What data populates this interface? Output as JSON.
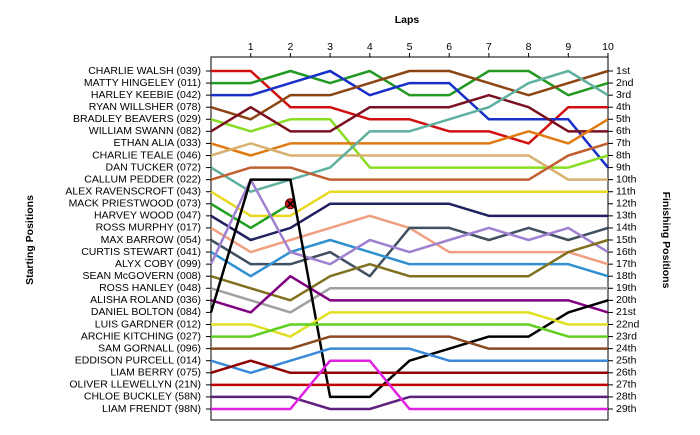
{
  "chart_data": {
    "type": "lap",
    "title": "Laps",
    "y_label": "Starting Positions",
    "y2_label": "Finishing Positions",
    "x": [
      0,
      1,
      2,
      3,
      4,
      5,
      6,
      7,
      8,
      9,
      10
    ],
    "xlim": [
      0,
      10
    ],
    "xticks": [
      1,
      2,
      3,
      4,
      5,
      6,
      7,
      8,
      9,
      10
    ],
    "ylim": [
      1,
      29
    ],
    "y_inverted": true,
    "yticks": [
      {
        "value": 1,
        "label": "CHARLIE WALSH (039)"
      },
      {
        "value": 2,
        "label": "MATTY HINGELEY (011)"
      },
      {
        "value": 3,
        "label": "HARLEY KEEBIE (042)"
      },
      {
        "value": 4,
        "label": "RYAN WILLSHER (078)"
      },
      {
        "value": 5,
        "label": "BRADLEY BEAVERS (029)"
      },
      {
        "value": 6,
        "label": "WILLIAM SWANN (082)"
      },
      {
        "value": 7,
        "label": "ETHAN ALIA (033)"
      },
      {
        "value": 8,
        "label": "CHARLIE TEALE (046)"
      },
      {
        "value": 9,
        "label": "DAN TUCKER (072)"
      },
      {
        "value": 10,
        "label": "CALLUM PEDDER (022)"
      },
      {
        "value": 11,
        "label": "ALEX RAVENSCROFT (043)"
      },
      {
        "value": 12,
        "label": "MACK PRIESTWOOD (073)"
      },
      {
        "value": 13,
        "label": "HARVEY WOOD (047)"
      },
      {
        "value": 14,
        "label": "ROSS MURPHY (017)"
      },
      {
        "value": 15,
        "label": "MAX BARROW (054)"
      },
      {
        "value": 16,
        "label": "CURTIS STEWART (041)"
      },
      {
        "value": 17,
        "label": "ALYX COBY (099)"
      },
      {
        "value": 18,
        "label": "SEAN McGOVERN (008)"
      },
      {
        "value": 19,
        "label": "ROSS HANLEY (048)"
      },
      {
        "value": 20,
        "label": "ALISHA ROLAND (036)"
      },
      {
        "value": 21,
        "label": "DANIEL BOLTON (084)"
      },
      {
        "value": 22,
        "label": "LUIS GARDNER (012)"
      },
      {
        "value": 23,
        "label": "ARCHIE KITCHING (027)"
      },
      {
        "value": 24,
        "label": "SAM GORNALL (096)"
      },
      {
        "value": 25,
        "label": "EDDISON PURCELL (014)"
      },
      {
        "value": 26,
        "label": "LIAM BERRY (075)"
      },
      {
        "value": 27,
        "label": "OLIVER LLEWELLYN (21N)"
      },
      {
        "value": 28,
        "label": "CHLOE BUCKLEY (58N)"
      },
      {
        "value": 29,
        "label": "LIAM FRENDT (98N)"
      }
    ],
    "y2ticks": [
      {
        "value": 1,
        "label": "1st"
      },
      {
        "value": 2,
        "label": "2nd"
      },
      {
        "value": 3,
        "label": "3rd"
      },
      {
        "value": 4,
        "label": "4th"
      },
      {
        "value": 5,
        "label": "5th"
      },
      {
        "value": 6,
        "label": "6th"
      },
      {
        "value": 7,
        "label": "7th"
      },
      {
        "value": 8,
        "label": "8th"
      },
      {
        "value": 9,
        "label": "9th"
      },
      {
        "value": 10,
        "label": "10th"
      },
      {
        "value": 11,
        "label": "11th"
      },
      {
        "value": 12,
        "label": "12th"
      },
      {
        "value": 13,
        "label": "13th"
      },
      {
        "value": 14,
        "label": "14th"
      },
      {
        "value": 15,
        "label": "15th"
      },
      {
        "value": 16,
        "label": "16th"
      },
      {
        "value": 17,
        "label": "17th"
      },
      {
        "value": 18,
        "label": "18th"
      },
      {
        "value": 19,
        "label": "19th"
      },
      {
        "value": 20,
        "label": "20th"
      },
      {
        "value": 21,
        "label": "21st"
      },
      {
        "value": 22,
        "label": "22nd"
      },
      {
        "value": 23,
        "label": "23rd"
      },
      {
        "value": 24,
        "label": "24th"
      },
      {
        "value": 25,
        "label": "25th"
      },
      {
        "value": 26,
        "label": "26th"
      },
      {
        "value": 27,
        "label": "27th"
      },
      {
        "value": 28,
        "label": "28th"
      },
      {
        "value": 29,
        "label": "29th"
      }
    ],
    "series": [
      {
        "color": "#d01010",
        "values": [
          1,
          1,
          4,
          4,
          5,
          5,
          6,
          6,
          7,
          4,
          4
        ]
      },
      {
        "color": "#229922",
        "values": [
          2,
          2,
          1,
          2,
          1,
          3,
          3,
          1,
          1,
          3,
          2
        ]
      },
      {
        "color": "#1830c8",
        "values": [
          3,
          3,
          2,
          1,
          3,
          2,
          2,
          5,
          5,
          5,
          9
        ]
      },
      {
        "color": "#8b4513",
        "values": [
          4,
          5,
          3,
          3,
          2,
          1,
          1,
          2,
          3,
          2,
          1
        ]
      },
      {
        "color": "#88dd22",
        "values": [
          5,
          6,
          5,
          5,
          9,
          9,
          9,
          9,
          9,
          9,
          8
        ]
      },
      {
        "color": "#7a1020",
        "values": [
          6,
          4,
          6,
          6,
          4,
          4,
          4,
          3,
          4,
          6,
          6
        ]
      },
      {
        "color": "#e07a10",
        "values": [
          7,
          8,
          7,
          7,
          7,
          7,
          7,
          7,
          6,
          7,
          5
        ]
      },
      {
        "color": "#d8b070",
        "values": [
          8,
          7,
          8,
          8,
          8,
          8,
          8,
          8,
          8,
          10,
          10
        ]
      },
      {
        "color": "#60b0a0",
        "values": [
          9,
          11,
          10,
          9,
          6,
          6,
          5,
          4,
          2,
          1,
          3
        ]
      },
      {
        "color": "#c06030",
        "values": [
          10,
          9,
          9,
          10,
          10,
          10,
          10,
          10,
          10,
          8,
          7
        ]
      },
      {
        "color": "#e8d820",
        "values": [
          11,
          13,
          13,
          11,
          11,
          11,
          11,
          11,
          11,
          11,
          11
        ]
      },
      {
        "color": "#20a020",
        "values": [
          12,
          14,
          12,
          null,
          null,
          null,
          null,
          null,
          null,
          null,
          null
        ],
        "retired_lap": 2
      },
      {
        "color": "#202060",
        "values": [
          13,
          15,
          14,
          12,
          12,
          12,
          12,
          13,
          13,
          13,
          13
        ]
      },
      {
        "color": "#f0a080",
        "values": [
          14,
          16,
          15,
          14,
          13,
          14,
          16,
          16,
          16,
          16,
          17
        ]
      },
      {
        "color": "#405060",
        "values": [
          15,
          17,
          17,
          16,
          18,
          14,
          14,
          15,
          14,
          15,
          14
        ]
      },
      {
        "color": "#3090d0",
        "values": [
          16,
          18,
          16,
          15,
          16,
          17,
          17,
          17,
          17,
          17,
          18
        ]
      },
      {
        "color": "#a080d0",
        "values": [
          17,
          10,
          16,
          17,
          15,
          16,
          15,
          14,
          15,
          14,
          16
        ]
      },
      {
        "color": "#807020",
        "values": [
          18,
          19,
          20,
          18,
          17,
          18,
          18,
          18,
          18,
          16,
          15
        ]
      },
      {
        "color": "#a0a0a0",
        "values": [
          19,
          20,
          21,
          19,
          19,
          19,
          19,
          19,
          19,
          19,
          19
        ]
      },
      {
        "color": "#800080",
        "values": [
          20,
          21,
          18,
          20,
          20,
          20,
          20,
          20,
          20,
          20,
          21
        ]
      },
      {
        "color": "#000000",
        "values": [
          21,
          10,
          10,
          28,
          28,
          25,
          24,
          23,
          23,
          21,
          20
        ]
      },
      {
        "color": "#e0e020",
        "values": [
          22,
          22,
          23,
          21,
          21,
          21,
          21,
          21,
          21,
          22,
          22
        ]
      },
      {
        "color": "#60d020",
        "values": [
          23,
          23,
          22,
          22,
          22,
          22,
          22,
          22,
          22,
          23,
          23
        ]
      },
      {
        "color": "#8b4a20",
        "values": [
          24,
          24,
          24,
          23,
          23,
          23,
          23,
          24,
          24,
          24,
          24
        ]
      },
      {
        "color": "#3a8ad8",
        "values": [
          25,
          26,
          25,
          24,
          24,
          24,
          25,
          25,
          25,
          25,
          25
        ]
      },
      {
        "color": "#900000",
        "values": [
          26,
          25,
          26,
          26,
          26,
          26,
          26,
          26,
          26,
          26,
          26
        ]
      },
      {
        "color": "#c00000",
        "values": [
          27,
          27,
          27,
          27,
          27,
          27,
          27,
          27,
          27,
          27,
          27
        ]
      },
      {
        "color": "#602080",
        "values": [
          28,
          28,
          28,
          29,
          29,
          28,
          28,
          28,
          28,
          28,
          28
        ]
      },
      {
        "color": "#e020e0",
        "values": [
          29,
          29,
          29,
          25,
          25,
          29,
          29,
          29,
          29,
          29,
          29
        ]
      }
    ]
  }
}
